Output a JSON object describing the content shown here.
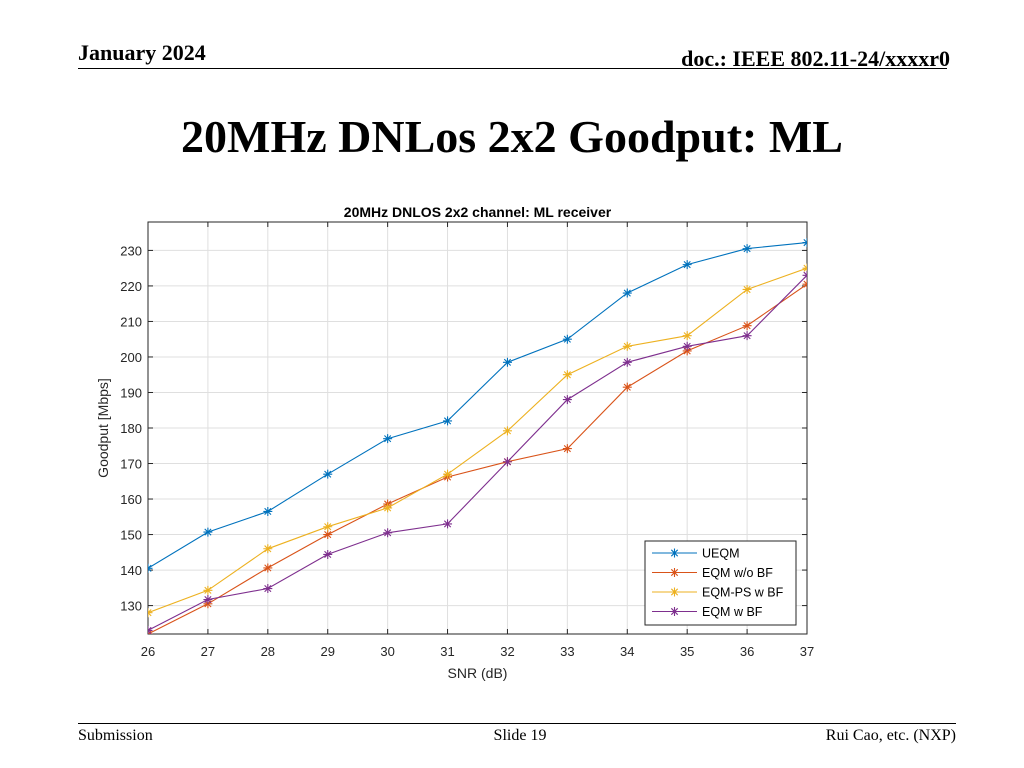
{
  "header": {
    "date": "January 2024",
    "doc": "doc.: IEEE 802.11-24/xxxxr0"
  },
  "slide_title": "20MHz DNLos 2x2 Goodput: ML",
  "footer": {
    "left": "Submission",
    "center": "Slide 19",
    "right": "Rui Cao, etc. (NXP)"
  },
  "chart_data": {
    "type": "line",
    "title": "20MHz DNLOS 2x2 channel: ML receiver",
    "xlabel": "SNR (dB)",
    "ylabel": "Goodput [Mbps]",
    "x": [
      26,
      27,
      28,
      29,
      30,
      31,
      32,
      33,
      34,
      35,
      36,
      37
    ],
    "xlim": [
      26,
      37
    ],
    "ylim": [
      122,
      238
    ],
    "xticks": [
      26,
      27,
      28,
      29,
      30,
      31,
      32,
      33,
      34,
      35,
      36,
      37
    ],
    "yticks": [
      130,
      140,
      150,
      160,
      170,
      180,
      190,
      200,
      210,
      220,
      230
    ],
    "grid": true,
    "legend_position": "bottom-right",
    "marker": "asterisk",
    "series": [
      {
        "name": "UEQM",
        "color": "#0072BD",
        "values": [
          140.5,
          150.7,
          156.5,
          167,
          177,
          182,
          198.5,
          205,
          218,
          226,
          230.5,
          232.2
        ]
      },
      {
        "name": "EQM w/o BF",
        "color": "#D95319",
        "values": [
          122,
          130.5,
          140.6,
          150,
          158.6,
          166.2,
          170.5,
          174.2,
          191.5,
          201.7,
          208.8,
          220.5
        ]
      },
      {
        "name": "EQM-PS w BF",
        "color": "#EDB120",
        "values": [
          128,
          134.3,
          146,
          152.2,
          157.5,
          167,
          179.2,
          195,
          203,
          206,
          219,
          225
        ]
      },
      {
        "name": "EQM w BF",
        "color": "#7E2F8E",
        "values": [
          123,
          131.7,
          134.8,
          144.4,
          150.5,
          153,
          170.5,
          188,
          198.5,
          203,
          206,
          223
        ]
      }
    ]
  }
}
